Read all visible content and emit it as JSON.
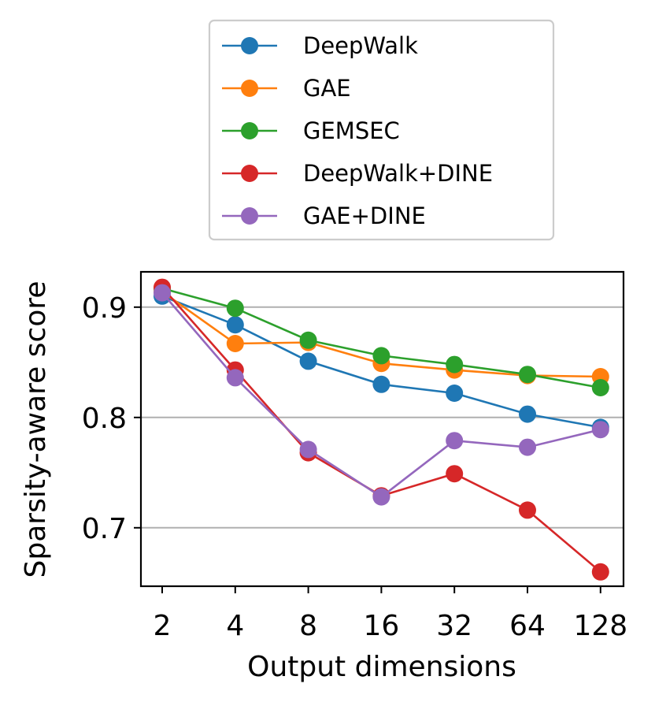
{
  "chart_data": {
    "type": "line",
    "xlabel": "Output dimensions",
    "ylabel": "Sparsity-aware score",
    "x": [
      "2",
      "4",
      "8",
      "16",
      "32",
      "64",
      "128"
    ],
    "yticks": [
      0.7,
      0.8,
      0.9
    ],
    "ytick_labels": [
      "0.7",
      "0.8",
      "0.9"
    ],
    "ylim": [
      0.647,
      0.932
    ],
    "grid": "horizontal",
    "legend_position": "above plot",
    "series": [
      {
        "name": "DeepWalk",
        "color": "#1f77b4",
        "values": [
          0.91,
          0.884,
          0.851,
          0.83,
          0.822,
          0.803,
          0.791
        ]
      },
      {
        "name": "GAE",
        "color": "#ff7f0e",
        "values": [
          0.914,
          0.867,
          0.868,
          0.849,
          0.843,
          0.838,
          0.837
        ]
      },
      {
        "name": "GEMSEC",
        "color": "#2ca02c",
        "values": [
          0.917,
          0.899,
          0.87,
          0.856,
          0.848,
          0.839,
          0.827
        ]
      },
      {
        "name": "DeepWalk+DINE",
        "color": "#d62728",
        "values": [
          0.918,
          0.843,
          0.768,
          0.729,
          0.749,
          0.716,
          0.66
        ]
      },
      {
        "name": "GAE+DINE",
        "color": "#9467bd",
        "values": [
          0.913,
          0.836,
          0.771,
          0.728,
          0.779,
          0.773,
          0.789
        ]
      }
    ]
  }
}
